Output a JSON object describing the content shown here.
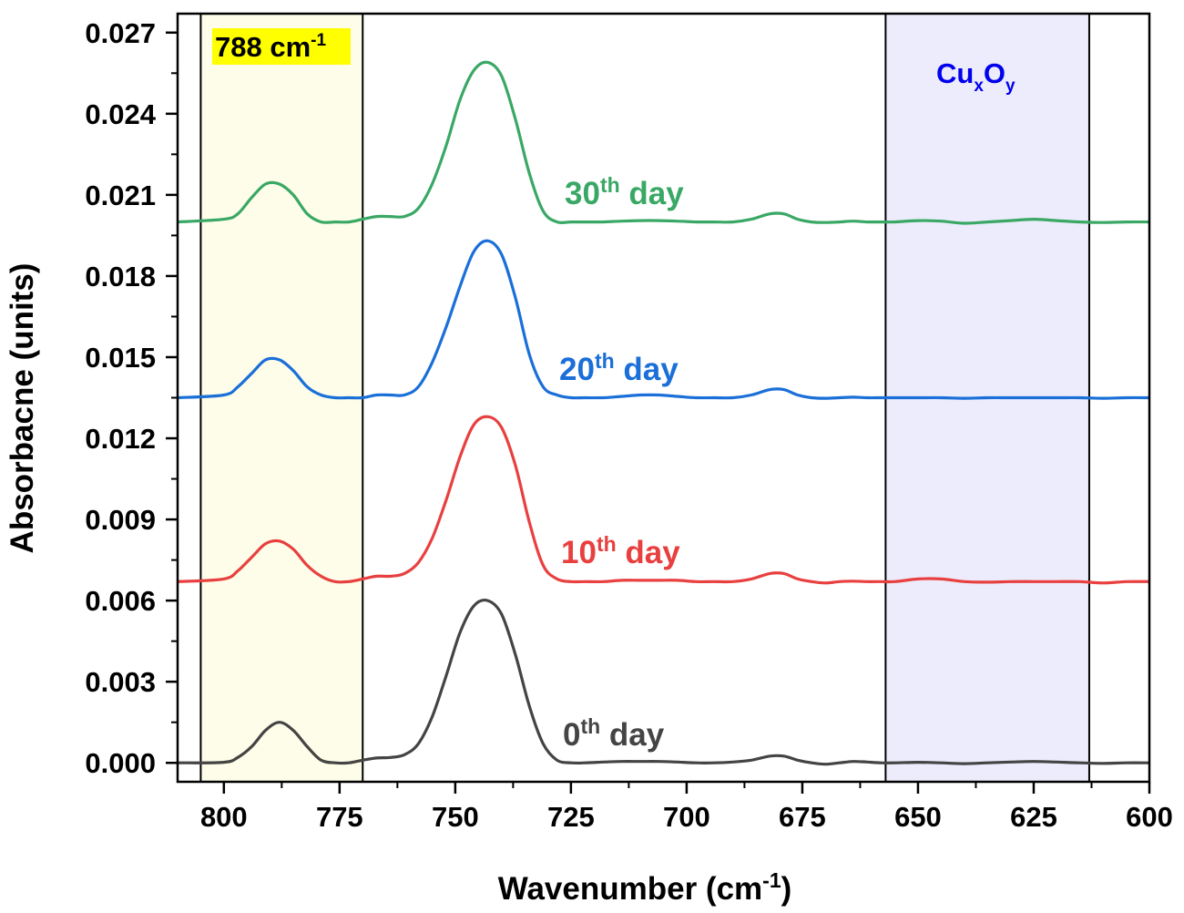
{
  "chart_data": {
    "type": "line",
    "title": "",
    "xlabel_main": "Wavenumber (cm",
    "xlabel_sup": "-1",
    "xlabel_end": ")",
    "ylabel": "Absorbacne (units)",
    "xlim": [
      810,
      600
    ],
    "ylim": [
      -0.0007,
      0.0277
    ],
    "x_reversed": true,
    "grid": false,
    "x_ticks": [
      800,
      775,
      750,
      725,
      700,
      675,
      650,
      625,
      600
    ],
    "x_tick_labels": [
      "800",
      "775",
      "750",
      "725",
      "700",
      "675",
      "650",
      "625",
      "600"
    ],
    "y_ticks": [
      0.0,
      0.003,
      0.006,
      0.009,
      0.012,
      0.015,
      0.018,
      0.021,
      0.024,
      0.027
    ],
    "y_tick_labels": [
      "0.000",
      "0.003",
      "0.006",
      "0.009",
      "0.012",
      "0.015",
      "0.018",
      "0.021",
      "0.024",
      "0.027"
    ],
    "regions": [
      {
        "x_from": 805,
        "x_to": 770,
        "color": "#fdfde9",
        "label_main": "788 cm",
        "label_sup": "-1",
        "label_bg": "#ffff00",
        "label_color": "#000000"
      },
      {
        "x_from": 657,
        "x_to": 613,
        "color": "#ececfc",
        "label_main": "Cu",
        "label_sub1": "x",
        "label_mid": "O",
        "label_sub2": "y",
        "label_color": "#0000ee"
      }
    ],
    "series": [
      {
        "label_pre": "0",
        "label_sup": "th",
        "label_post": " day",
        "color": "#444444",
        "x": [
          810,
          800,
          797,
          794,
          791,
          788,
          785,
          782,
          779,
          776,
          773,
          770,
          767,
          764,
          761,
          758,
          755,
          752,
          749,
          746,
          743,
          740,
          737,
          734,
          731,
          728,
          725,
          722,
          718,
          714,
          710,
          706,
          702,
          698,
          694,
          690,
          686,
          682,
          679,
          676,
          673,
          670,
          667,
          664,
          661,
          658,
          655,
          650,
          645,
          640,
          635,
          630,
          625,
          620,
          615,
          610,
          605,
          600
        ],
        "y": [
          0.0,
          2e-05,
          0.0002,
          0.0006,
          0.0012,
          0.0015,
          0.0012,
          0.0006,
          0.0001,
          0.0,
          0.0,
          0.0001,
          0.00018,
          0.0002,
          0.0003,
          0.0007,
          0.0017,
          0.0032,
          0.0048,
          0.0058,
          0.006,
          0.0055,
          0.004,
          0.0021,
          0.0007,
          0.0001,
          0.0,
          0.0,
          3e-05,
          5e-05,
          5e-05,
          5e-05,
          3e-05,
          0.0,
          0.0,
          3e-05,
          0.0001,
          0.00025,
          0.00025,
          0.0001,
          0.0,
          -5e-05,
          0.0,
          5e-05,
          3e-05,
          0.0,
          0.0,
          2e-05,
          0.0,
          -3e-05,
          0.0,
          3e-05,
          5e-05,
          3e-05,
          0.0,
          -2e-05,
          0.0,
          0.0
        ]
      },
      {
        "label_pre": "10",
        "label_sup": "th",
        "label_post": " day",
        "color": "#e8403f",
        "x": [
          810,
          800,
          797,
          794,
          791,
          788,
          785,
          782,
          779,
          776,
          773,
          770,
          767,
          764,
          761,
          758,
          755,
          752,
          749,
          746,
          743,
          740,
          737,
          734,
          731,
          728,
          725,
          722,
          718,
          714,
          710,
          706,
          702,
          698,
          694,
          690,
          686,
          682,
          679,
          676,
          673,
          670,
          667,
          664,
          661,
          658,
          655,
          650,
          645,
          640,
          635,
          630,
          625,
          620,
          615,
          610,
          605,
          600
        ],
        "y": [
          0.0067,
          0.0068,
          0.0071,
          0.0076,
          0.0081,
          0.0082,
          0.0079,
          0.0073,
          0.0069,
          0.0067,
          0.0067,
          0.0068,
          0.0069,
          0.0069,
          0.007,
          0.0074,
          0.0083,
          0.0097,
          0.0113,
          0.0125,
          0.0128,
          0.0124,
          0.011,
          0.0089,
          0.0073,
          0.0068,
          0.0067,
          0.0067,
          0.0067,
          0.00675,
          0.00675,
          0.00675,
          0.00675,
          0.0067,
          0.0067,
          0.0067,
          0.0068,
          0.007,
          0.007,
          0.0068,
          0.0067,
          0.00665,
          0.0067,
          0.00672,
          0.0067,
          0.0067,
          0.0067,
          0.0068,
          0.0068,
          0.0067,
          0.00668,
          0.0067,
          0.0067,
          0.0067,
          0.0067,
          0.00665,
          0.0067,
          0.0067
        ]
      },
      {
        "label_pre": "20",
        "label_sup": "th",
        "label_post": " day",
        "color": "#1a6fd8",
        "x": [
          810,
          800,
          797,
          794,
          791,
          788,
          785,
          782,
          779,
          776,
          773,
          770,
          767,
          764,
          761,
          758,
          755,
          752,
          749,
          746,
          743,
          740,
          737,
          734,
          731,
          728,
          725,
          722,
          718,
          714,
          710,
          706,
          702,
          698,
          694,
          690,
          686,
          682,
          679,
          676,
          673,
          670,
          667,
          664,
          661,
          658,
          655,
          650,
          645,
          640,
          635,
          630,
          625,
          620,
          615,
          610,
          605,
          600
        ],
        "y": [
          0.0135,
          0.0136,
          0.0139,
          0.0144,
          0.0149,
          0.0149,
          0.0145,
          0.0139,
          0.0136,
          0.0135,
          0.0135,
          0.0135,
          0.0136,
          0.0136,
          0.0136,
          0.0139,
          0.0148,
          0.0161,
          0.0176,
          0.0189,
          0.0193,
          0.0188,
          0.0172,
          0.0151,
          0.0139,
          0.0136,
          0.0135,
          0.0135,
          0.0135,
          0.01355,
          0.0136,
          0.0136,
          0.01355,
          0.0135,
          0.0135,
          0.0135,
          0.0136,
          0.0138,
          0.0138,
          0.0136,
          0.0135,
          0.01348,
          0.0135,
          0.01352,
          0.0135,
          0.0135,
          0.0135,
          0.0135,
          0.0135,
          0.01348,
          0.0135,
          0.0135,
          0.0135,
          0.0135,
          0.0135,
          0.01348,
          0.0135,
          0.0135
        ]
      },
      {
        "label_pre": "30",
        "label_sup": "th",
        "label_post": " day",
        "color": "#3aa865",
        "x": [
          810,
          800,
          797,
          794,
          791,
          788,
          785,
          782,
          779,
          776,
          773,
          770,
          767,
          764,
          761,
          758,
          755,
          752,
          749,
          746,
          743,
          740,
          737,
          734,
          731,
          728,
          725,
          722,
          718,
          714,
          710,
          706,
          702,
          698,
          694,
          690,
          686,
          682,
          679,
          676,
          673,
          670,
          667,
          664,
          661,
          658,
          655,
          650,
          645,
          640,
          635,
          630,
          625,
          620,
          615,
          610,
          605,
          600
        ],
        "y": [
          0.02,
          0.0201,
          0.0203,
          0.0209,
          0.0214,
          0.0214,
          0.021,
          0.0203,
          0.02,
          0.02,
          0.02,
          0.0201,
          0.0202,
          0.0202,
          0.0202,
          0.0205,
          0.0214,
          0.0228,
          0.0245,
          0.0256,
          0.0259,
          0.0254,
          0.0238,
          0.0218,
          0.0204,
          0.02,
          0.02,
          0.02,
          0.02,
          0.02003,
          0.02005,
          0.02005,
          0.02003,
          0.02,
          0.02,
          0.02,
          0.0201,
          0.0203,
          0.0203,
          0.0201,
          0.02,
          0.01998,
          0.02,
          0.02003,
          0.02,
          0.02,
          0.02,
          0.02005,
          0.02003,
          0.01995,
          0.02,
          0.02005,
          0.0201,
          0.02005,
          0.02,
          0.01998,
          0.02,
          0.02
        ]
      }
    ]
  }
}
